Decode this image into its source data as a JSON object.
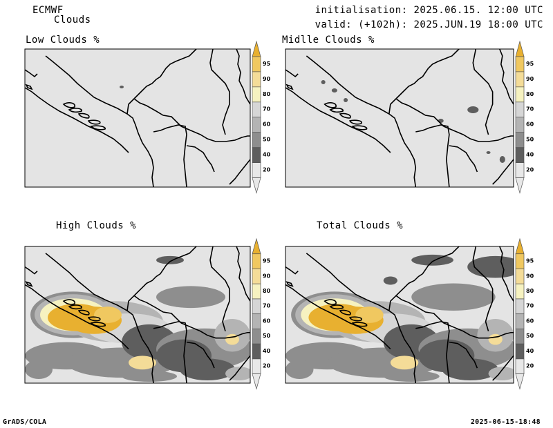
{
  "header": {
    "model": "ECMWF",
    "field": "Clouds",
    "init": "initialisation: 2025.06.15. 12:00 UTC",
    "valid": "valid: (+102h): 2025.JUN.19 18:00 UTC"
  },
  "panels": [
    {
      "id": "low",
      "title": "Low Clouds %"
    },
    {
      "id": "middle",
      "title": "Midlle Clouds %"
    },
    {
      "id": "high",
      "title": "High Clouds %"
    },
    {
      "id": "total",
      "title": "Total Clouds %"
    }
  ],
  "colorbar": {
    "labels": [
      "95",
      "90",
      "80",
      "70",
      "60",
      "50",
      "40",
      "20"
    ],
    "colors": [
      "#e8b030",
      "#f0c860",
      "#f4dc98",
      "#f6f2c0",
      "#d6d6d6",
      "#b4b4b4",
      "#8e8e8e",
      "#5e5e5e",
      "#e8e8e8"
    ]
  },
  "map_colors": {
    "background": "#e4e4e4",
    "border": "#000000"
  },
  "footer": {
    "left": "GrADS/COLA",
    "right": "2025-06-15-18:48"
  }
}
